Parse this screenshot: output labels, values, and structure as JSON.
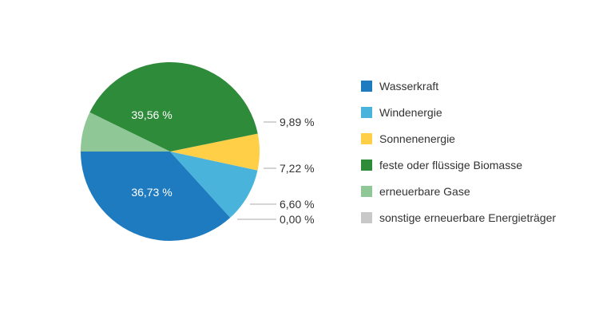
{
  "chart_data": {
    "type": "pie",
    "title": "",
    "start_angle_deg": 180,
    "direction": "counterclockwise",
    "slices": [
      {
        "name": "Wasserkraft",
        "value": 36.73,
        "label": "36,73 %",
        "label_position": "inside",
        "color": "#1f7bc0"
      },
      {
        "name": "Windenergie",
        "value": 9.89,
        "label": "9,89 %",
        "label_position": "outside",
        "color": "#4ab3dc"
      },
      {
        "name": "Sonnenenergie",
        "value": 6.6,
        "label": "6,60 %",
        "label_position": "outside",
        "color": "#ffcf48"
      },
      {
        "name": "feste oder flüssige Biomasse",
        "value": 39.56,
        "label": "39,56 %",
        "label_position": "inside",
        "color": "#2e8b3a"
      },
      {
        "name": "erneuerbare Gase",
        "value": 7.22,
        "label": "7,22 %",
        "label_position": "outside",
        "color": "#8fc896"
      },
      {
        "name": "sonstige erneuerbare Energieträger",
        "value": 0.0,
        "label": "0,00 %",
        "label_position": "outside",
        "color": "#c8c8c8"
      }
    ],
    "legend_order": [
      "Wasserkraft",
      "Windenergie",
      "Sonnenenergie",
      "feste oder flüssige Biomasse",
      "erneuerbare Gase",
      "sonstige erneuerbare Energieträger"
    ],
    "legend_position": "right"
  }
}
